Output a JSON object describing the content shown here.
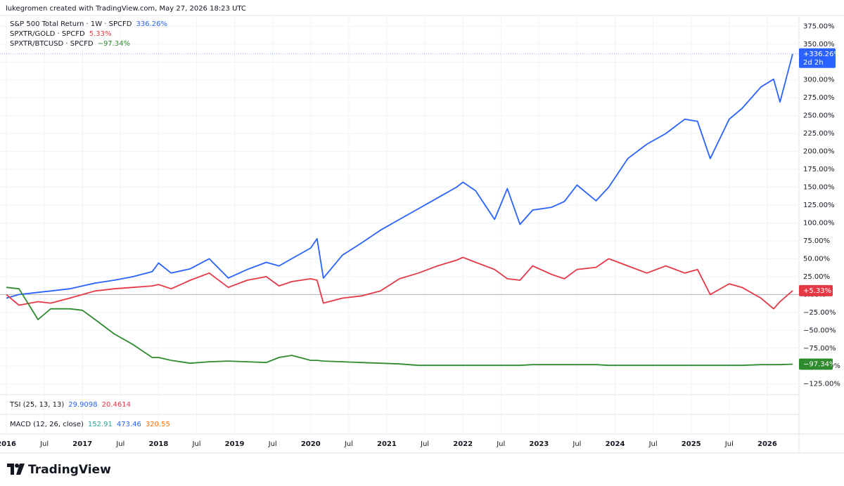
{
  "header": "lukegromen created with TradingView.com, May 27, 2026 18:23 UTC",
  "chart_data": {
    "type": "line",
    "x": [
      "2016-01",
      "2016-03",
      "2016-06",
      "2016-08",
      "2016-11",
      "2017-01",
      "2017-03",
      "2017-06",
      "2017-09",
      "2017-12",
      "2018-01",
      "2018-03",
      "2018-06",
      "2018-09",
      "2018-12",
      "2019-03",
      "2019-06",
      "2019-08",
      "2019-10",
      "2020-01",
      "2020-02",
      "2020-03",
      "2020-06",
      "2020-09",
      "2020-12",
      "2021-03",
      "2021-06",
      "2021-09",
      "2021-12",
      "2022-01",
      "2022-03",
      "2022-06",
      "2022-08",
      "2022-10",
      "2022-12",
      "2023-03",
      "2023-05",
      "2023-07",
      "2023-10",
      "2023-12",
      "2024-03",
      "2024-06",
      "2024-09",
      "2024-12",
      "2025-02",
      "2025-04",
      "2025-07",
      "2025-09",
      "2025-12",
      "2026-02",
      "2026-03",
      "2026-05"
    ],
    "xlim": [
      "2015-12",
      "2026-06"
    ],
    "xticks": [
      {
        "value": "2016-01",
        "label": "2016"
      },
      {
        "value": "2016-07",
        "label": "Jul"
      },
      {
        "value": "2017-01",
        "label": "2017"
      },
      {
        "value": "2017-07",
        "label": "Jul"
      },
      {
        "value": "2018-01",
        "label": "2018"
      },
      {
        "value": "2018-07",
        "label": "Jul"
      },
      {
        "value": "2019-01",
        "label": "2019"
      },
      {
        "value": "2019-07",
        "label": "Jul"
      },
      {
        "value": "2020-01",
        "label": "2020"
      },
      {
        "value": "2020-07",
        "label": "Jul"
      },
      {
        "value": "2021-01",
        "label": "2021"
      },
      {
        "value": "2021-07",
        "label": "Jul"
      },
      {
        "value": "2022-01",
        "label": "2022"
      },
      {
        "value": "2022-07",
        "label": "Jul"
      },
      {
        "value": "2023-01",
        "label": "2023"
      },
      {
        "value": "2023-07",
        "label": "Jul"
      },
      {
        "value": "2024-01",
        "label": "2024"
      },
      {
        "value": "2024-07",
        "label": "Jul"
      },
      {
        "value": "2025-01",
        "label": "2025"
      },
      {
        "value": "2025-07",
        "label": "Jul"
      },
      {
        "value": "2026-01",
        "label": "2026"
      }
    ],
    "ylim": [
      -140,
      390
    ],
    "yticks": [
      {
        "value": 375,
        "label": "375.00%"
      },
      {
        "value": 350,
        "label": "350.00%"
      },
      {
        "value": 325,
        "label": "325.00%"
      },
      {
        "value": 300,
        "label": "300.00%"
      },
      {
        "value": 275,
        "label": "275.00%"
      },
      {
        "value": 250,
        "label": "250.00%"
      },
      {
        "value": 225,
        "label": "225.00%"
      },
      {
        "value": 200,
        "label": "200.00%"
      },
      {
        "value": 175,
        "label": "175.00%"
      },
      {
        "value": 150,
        "label": "150.00%"
      },
      {
        "value": 125,
        "label": "125.00%"
      },
      {
        "value": 100,
        "label": "100.00%"
      },
      {
        "value": 75,
        "label": "75.00%"
      },
      {
        "value": 50,
        "label": "50.00%"
      },
      {
        "value": 25,
        "label": "25.00%"
      },
      {
        "value": 0,
        "label": "0.00%"
      },
      {
        "value": -25,
        "label": "−25.00%"
      },
      {
        "value": -50,
        "label": "−50.00%"
      },
      {
        "value": -75,
        "label": "−75.00%"
      },
      {
        "value": -100,
        "label": "−100.00%"
      },
      {
        "value": -125,
        "label": "−125.00%"
      }
    ],
    "grid": true,
    "series": [
      {
        "name": "S&P 500 Total Return · 1W · SPCFD",
        "legend_value": "336.26%",
        "last_label": "+336.26%",
        "countdown": "2d 2h",
        "color": "#2962ff",
        "values": [
          -5,
          0,
          3,
          5,
          8,
          12,
          16,
          20,
          25,
          32,
          44,
          30,
          36,
          50,
          23,
          35,
          45,
          40,
          50,
          65,
          78,
          23,
          55,
          72,
          90,
          105,
          120,
          135,
          150,
          157,
          145,
          105,
          148,
          98,
          118,
          122,
          130,
          153,
          131,
          150,
          190,
          210,
          225,
          245,
          242,
          190,
          245,
          260,
          290,
          301,
          269,
          336.26
        ]
      },
      {
        "name": "SPXTR/GOLD · SPCFD",
        "legend_value": "5.33%",
        "last_label": "+5.33%",
        "color": "#e53946",
        "values": [
          0,
          -15,
          -10,
          -12,
          -5,
          0,
          5,
          8,
          10,
          12,
          14,
          8,
          20,
          30,
          10,
          20,
          25,
          12,
          18,
          22,
          20,
          -12,
          -5,
          -2,
          5,
          22,
          30,
          40,
          48,
          52,
          45,
          35,
          22,
          20,
          40,
          28,
          22,
          35,
          38,
          50,
          40,
          30,
          40,
          30,
          35,
          0,
          15,
          10,
          -5,
          -20,
          -10,
          5.33
        ]
      },
      {
        "name": "SPXTR/BTCUSD · SPCFD",
        "legend_value": "−97.34%",
        "last_label": "−97.34%",
        "color": "#2e8b2e",
        "values": [
          10,
          8,
          -35,
          -20,
          -20,
          -22,
          -35,
          -55,
          -70,
          -88,
          -88,
          -92,
          -96,
          -94,
          -93,
          -94,
          -95,
          -88,
          -85,
          -92,
          -92,
          -93,
          -94,
          -95,
          -96,
          -97,
          -99,
          -99,
          -99,
          -99,
          -99,
          -99,
          -99,
          -99,
          -98,
          -98,
          -98,
          -98,
          -98,
          -99,
          -99,
          -99,
          -99,
          -99,
          -99,
          -99,
          -99,
          -99,
          -98,
          -98,
          -98,
          -97.34
        ]
      }
    ]
  },
  "indicators": [
    {
      "name": "TSI (25, 13, 13)",
      "values": [
        {
          "text": "29.9098",
          "color": "#2962ff"
        },
        {
          "text": "20.4614",
          "color": "#e53946"
        }
      ]
    },
    {
      "name": "MACD (12, 26, close)",
      "values": [
        {
          "text": "152.91",
          "color": "#26a69a"
        },
        {
          "text": "473.46",
          "color": "#2962ff"
        },
        {
          "text": "320.55",
          "color": "#ff6d00"
        }
      ]
    }
  ],
  "logo": "TradingView"
}
